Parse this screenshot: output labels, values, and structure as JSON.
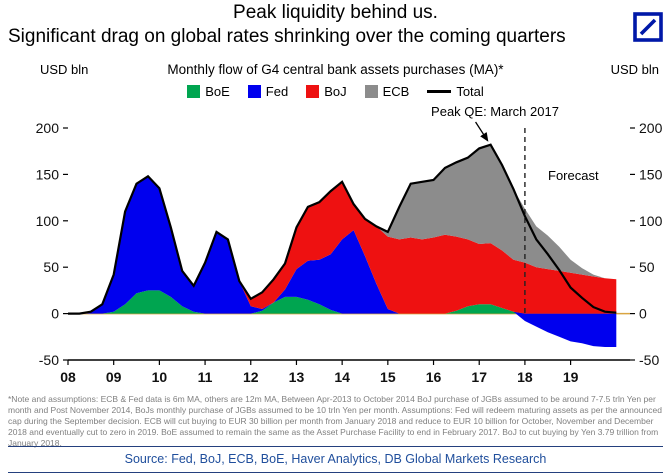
{
  "header": {
    "title_line1": "Peak liquidity behind us.",
    "title_line2": "Significant drag on global rates shrinking over the coming quarters"
  },
  "chart": {
    "subtitle": "Monthly flow of G4 central bank assets purchases (MA)*",
    "ylabel_left": "USD bln",
    "ylabel_right": "USD bln",
    "annotation_peak": "Peak QE: March 2017",
    "annotation_forecast": "Forecast"
  },
  "chart_data": {
    "type": "area",
    "stacked": true,
    "title": "Monthly flow of G4 central bank assets purchases (MA)*",
    "ylabel": "USD bln",
    "xlim": [
      2008,
      2020.3
    ],
    "ylim": [
      -50,
      200
    ],
    "yticks": [
      200,
      150,
      100,
      50,
      0,
      -50
    ],
    "xticks": {
      "values": [
        2008,
        2009,
        2010,
        2011,
        2012,
        2013,
        2014,
        2015,
        2016,
        2017,
        2018,
        2019
      ],
      "labels": [
        "08",
        "09",
        "10",
        "11",
        "12",
        "13",
        "14",
        "15",
        "16",
        "17",
        "18",
        "19"
      ]
    },
    "x": [
      2008.0,
      2008.25,
      2008.5,
      2008.75,
      2009.0,
      2009.25,
      2009.5,
      2009.75,
      2010.0,
      2010.25,
      2010.5,
      2010.75,
      2011.0,
      2011.25,
      2011.5,
      2011.75,
      2012.0,
      2012.25,
      2012.5,
      2012.75,
      2013.0,
      2013.25,
      2013.5,
      2013.75,
      2014.0,
      2014.25,
      2014.5,
      2014.75,
      2015.0,
      2015.25,
      2015.5,
      2015.75,
      2016.0,
      2016.25,
      2016.5,
      2016.75,
      2017.0,
      2017.25,
      2017.5,
      2017.75,
      2018.0,
      2018.25,
      2018.5,
      2018.75,
      2019.0,
      2019.25,
      2019.5,
      2019.75,
      2020.0
    ],
    "series": [
      {
        "name": "BoE",
        "color": "#00A550",
        "values": [
          0,
          0,
          0,
          0,
          2,
          10,
          22,
          25,
          25,
          18,
          8,
          2,
          0,
          0,
          0,
          0,
          0,
          3,
          12,
          18,
          18,
          15,
          10,
          4,
          0,
          0,
          0,
          0,
          0,
          0,
          0,
          0,
          0,
          0,
          3,
          8,
          10,
          10,
          6,
          2,
          0,
          0,
          0,
          0,
          0,
          0,
          0,
          0,
          0
        ]
      },
      {
        "name": "Fed",
        "color": "#0000EE",
        "values": [
          0,
          0,
          2,
          10,
          40,
          100,
          118,
          123,
          110,
          75,
          38,
          28,
          55,
          88,
          80,
          35,
          8,
          2,
          0,
          8,
          30,
          42,
          48,
          60,
          80,
          90,
          62,
          32,
          5,
          0,
          0,
          0,
          0,
          0,
          0,
          0,
          0,
          0,
          0,
          0,
          -8,
          -14,
          -20,
          -25,
          -30,
          -32,
          -35,
          -36,
          -36
        ]
      },
      {
        "name": "BoJ",
        "color": "#EE1111",
        "values": [
          0,
          0,
          0,
          0,
          0,
          0,
          0,
          0,
          0,
          0,
          0,
          0,
          0,
          0,
          0,
          0,
          8,
          18,
          25,
          28,
          45,
          58,
          62,
          68,
          62,
          28,
          40,
          62,
          78,
          80,
          82,
          80,
          82,
          85,
          80,
          72,
          65,
          66,
          62,
          56,
          55,
          50,
          48,
          46,
          44,
          42,
          40,
          38,
          37
        ]
      },
      {
        "name": "ECB",
        "color": "#8C8C8C",
        "values": [
          0,
          0,
          0,
          0,
          0,
          0,
          0,
          0,
          0,
          0,
          0,
          0,
          0,
          0,
          0,
          0,
          0,
          0,
          0,
          0,
          0,
          0,
          0,
          0,
          0,
          0,
          0,
          0,
          5,
          35,
          58,
          62,
          62,
          72,
          80,
          88,
          103,
          106,
          92,
          76,
          58,
          44,
          36,
          26,
          14,
          7,
          2,
          0,
          0
        ]
      }
    ],
    "total_line": {
      "name": "Total",
      "color": "#000000"
    },
    "annotations": {
      "peak_label": "Peak QE: March 2017",
      "peak_x": 2017.25,
      "peak_y": 182,
      "forecast_label": "Forecast",
      "forecast_line_x": 2018.0
    },
    "zero_line_color": "#D9A441",
    "legend_position": "top",
    "grid": false
  },
  "footnote": "*Note and assumptions: ECB & Fed data is 6m MA, others are 12m MA, Between Apr-2013 to October 2014 BoJ purchase of JGBs assumed to be around 7-7.5 trln Yen per month and Post November 2014, BoJs monthly purchase of JGBs assumed to be 10 trln Yen per month. Assumptions: Fed will redeem maturing assets as per the announced cap during the September decision. ECB will cut buying to EUR 30 billion per month from January 2018 and reduce to EUR 10 billion for October, November and December 2018 and eventually cut to zero in 2019. BoE assumed to remain the same as the Asset Purchase Facility to end in February 2017. BoJ to cut buying by Yen 3.79 trillion from January 2018.",
  "source": "Source: Fed, BoJ, ECB, BoE, Haver Analytics, DB Global Markets Research"
}
